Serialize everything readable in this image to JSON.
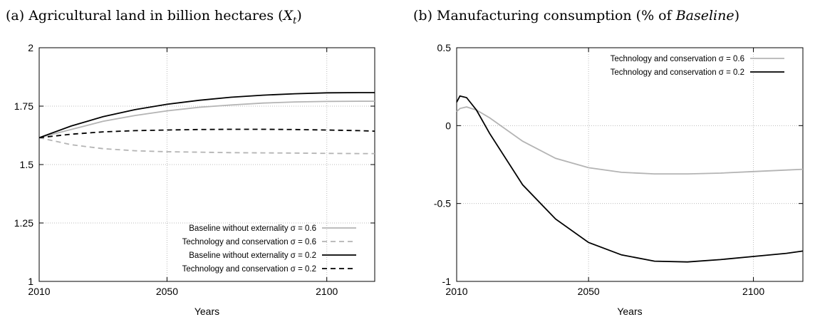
{
  "chart_data": [
    {
      "type": "line",
      "title": [
        "(a) Agricultural land in billion hectares (",
        "X",
        "t",
        ")"
      ],
      "xlabel": "Years",
      "xlim": [
        2010,
        2115
      ],
      "xticks": [
        2010,
        2050,
        2100
      ],
      "ylim": [
        1,
        2
      ],
      "yticks": [
        1,
        1.25,
        1.5,
        1.75,
        2
      ],
      "grid": true,
      "legend": "lower right",
      "series": [
        {
          "name": "Baseline without externality σ = 0.6",
          "color": "#b4b4b4",
          "dash": false,
          "x": [
            2010,
            2020,
            2030,
            2040,
            2050,
            2060,
            2070,
            2080,
            2090,
            2100,
            2110,
            2115
          ],
          "values": [
            1.615,
            1.65,
            1.685,
            1.71,
            1.73,
            1.745,
            1.755,
            1.763,
            1.768,
            1.77,
            1.771,
            1.771
          ]
        },
        {
          "name": "Technology and conservation σ = 0.6",
          "color": "#b4b4b4",
          "dash": true,
          "x": [
            2010,
            2020,
            2030,
            2040,
            2050,
            2060,
            2070,
            2080,
            2090,
            2100,
            2110,
            2115
          ],
          "values": [
            1.615,
            1.585,
            1.568,
            1.559,
            1.555,
            1.553,
            1.551,
            1.55,
            1.549,
            1.548,
            1.547,
            1.547
          ]
        },
        {
          "name": "Baseline without externality σ = 0.2",
          "color": "#000000",
          "dash": false,
          "x": [
            2010,
            2020,
            2030,
            2040,
            2050,
            2060,
            2070,
            2080,
            2090,
            2100,
            2110,
            2115
          ],
          "values": [
            1.615,
            1.665,
            1.705,
            1.735,
            1.758,
            1.775,
            1.788,
            1.797,
            1.803,
            1.807,
            1.808,
            1.808
          ]
        },
        {
          "name": "Technology and conservation σ = 0.2",
          "color": "#000000",
          "dash": true,
          "x": [
            2010,
            2020,
            2030,
            2040,
            2050,
            2060,
            2070,
            2080,
            2090,
            2100,
            2110,
            2115
          ],
          "values": [
            1.615,
            1.63,
            1.64,
            1.645,
            1.648,
            1.65,
            1.651,
            1.651,
            1.65,
            1.648,
            1.645,
            1.643
          ]
        }
      ]
    },
    {
      "type": "line",
      "title": [
        "(b) Manufacturing consumption (% of ",
        "Baseline",
        ")"
      ],
      "xlabel": "Years",
      "xlim": [
        2010,
        2115
      ],
      "xticks": [
        2010,
        2050,
        2100
      ],
      "ylim": [
        -1,
        0.5
      ],
      "yticks": [
        -1,
        -0.5,
        0,
        0.5
      ],
      "grid": true,
      "legend": "upper right",
      "series": [
        {
          "name": "Technology and conservation σ = 0.6",
          "color": "#b4b4b4",
          "dash": false,
          "x": [
            2010,
            2011,
            2013,
            2016,
            2020,
            2030,
            2040,
            2050,
            2060,
            2070,
            2080,
            2090,
            2100,
            2110,
            2115
          ],
          "values": [
            0.09,
            0.11,
            0.12,
            0.1,
            0.05,
            -0.1,
            -0.21,
            -0.27,
            -0.3,
            -0.31,
            -0.31,
            -0.305,
            -0.295,
            -0.285,
            -0.28
          ]
        },
        {
          "name": "Technology and conservation σ = 0.2",
          "color": "#000000",
          "dash": false,
          "x": [
            2010,
            2011,
            2013,
            2016,
            2020,
            2030,
            2040,
            2050,
            2060,
            2070,
            2080,
            2090,
            2100,
            2110,
            2115
          ],
          "values": [
            0.15,
            0.19,
            0.18,
            0.1,
            -0.05,
            -0.38,
            -0.6,
            -0.75,
            -0.83,
            -0.87,
            -0.875,
            -0.86,
            -0.84,
            -0.82,
            -0.805
          ]
        }
      ]
    }
  ]
}
